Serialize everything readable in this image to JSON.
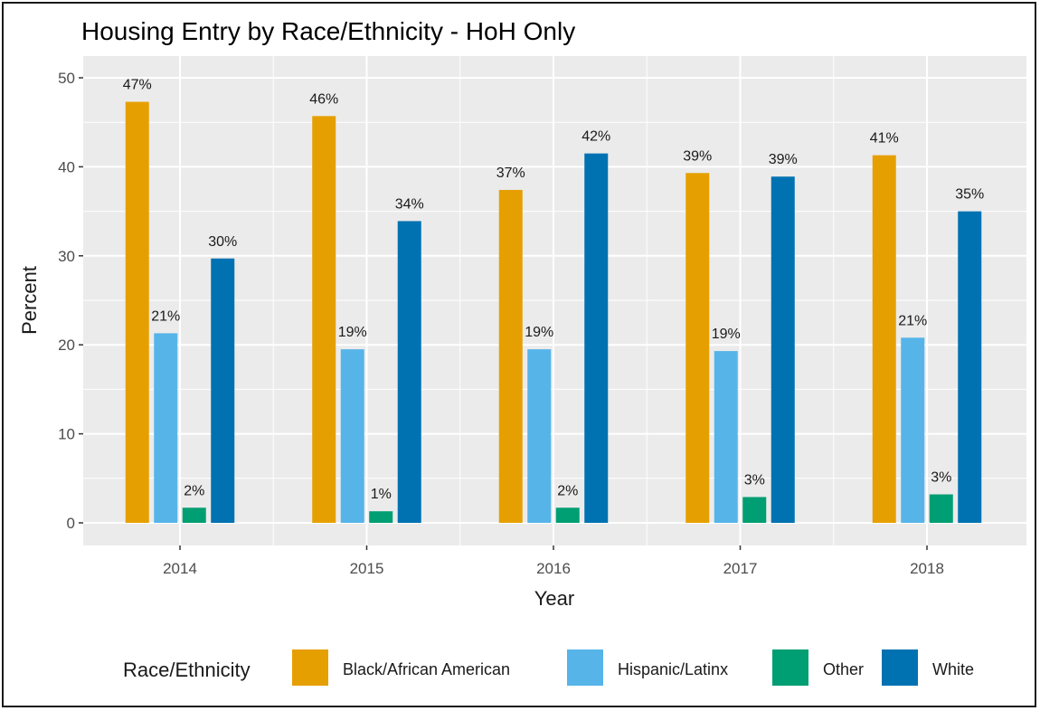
{
  "chart_data": {
    "type": "bar",
    "title": "Housing Entry by Race/Ethnicity - HoH Only",
    "xlabel": "Year",
    "ylabel": "Percent",
    "categories": [
      "2014",
      "2015",
      "2016",
      "2017",
      "2018"
    ],
    "ylim": [
      0,
      50
    ],
    "yticks": [
      0,
      10,
      20,
      30,
      40,
      50
    ],
    "grid": true,
    "legend_title": "Race/Ethnicity",
    "legend_position": "bottom",
    "series": [
      {
        "name": "Black/African American",
        "color": "#E69F00",
        "values": [
          47.3,
          45.7,
          37.4,
          39.3,
          41.3
        ],
        "labels": [
          "47%",
          "46%",
          "37%",
          "39%",
          "41%"
        ]
      },
      {
        "name": "Hispanic/Latinx",
        "color": "#56B4E9",
        "values": [
          21.3,
          19.5,
          19.5,
          19.3,
          20.8
        ],
        "labels": [
          "21%",
          "19%",
          "19%",
          "19%",
          "21%"
        ]
      },
      {
        "name": "Other",
        "color": "#009E73",
        "values": [
          1.7,
          1.3,
          1.7,
          2.9,
          3.2
        ],
        "labels": [
          "2%",
          "1%",
          "2%",
          "3%",
          "3%"
        ]
      },
      {
        "name": "White",
        "color": "#0072B2",
        "values": [
          29.7,
          33.9,
          41.5,
          38.9,
          35.0
        ],
        "labels": [
          "30%",
          "34%",
          "42%",
          "39%",
          "35%"
        ]
      }
    ]
  }
}
